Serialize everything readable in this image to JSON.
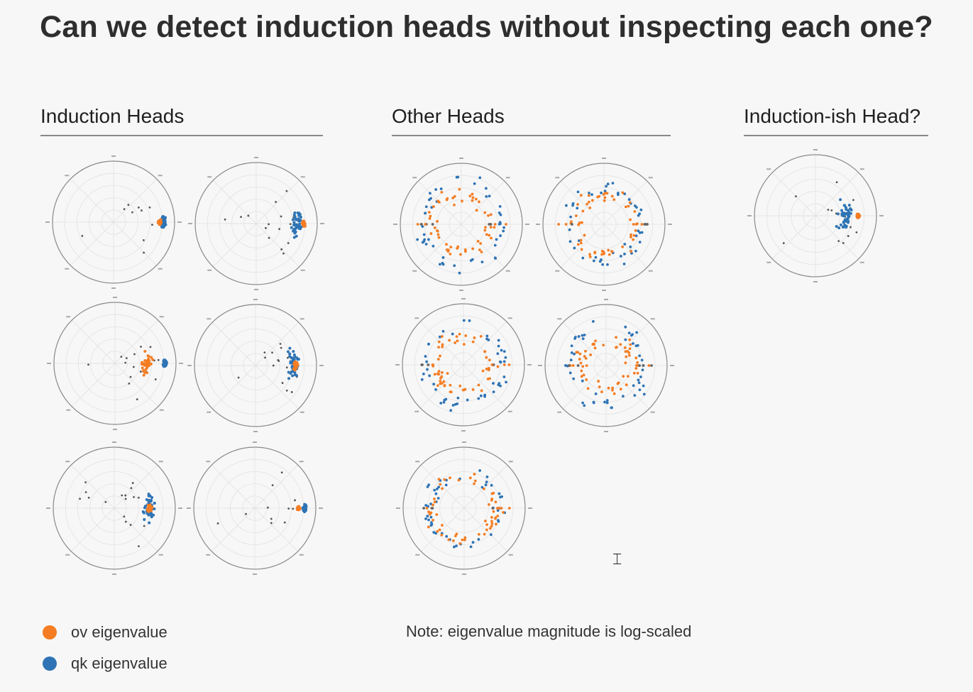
{
  "title": "Can we detect induction heads without inspecting each one?",
  "groups": {
    "induction": "Induction Heads",
    "other": "Other Heads",
    "ish": "Induction-ish Head?"
  },
  "legend": {
    "ov": {
      "label": "ov eigenvalue",
      "color": "#f47d23"
    },
    "qk": {
      "label": "qk eigenvalue",
      "color": "#2e74b5"
    }
  },
  "note": "Note: eigenvalue magnitude is log-scaled",
  "chart_data": [
    {
      "type": "scatter",
      "group": "Induction Heads",
      "polar": true,
      "pattern": "induction",
      "series": [
        {
          "key": "qk",
          "angle_deg": 0,
          "radius": 0.82,
          "spread": 0.06
        },
        {
          "key": "ov",
          "angle_deg": 0,
          "radius": 0.76,
          "spread": 0.03
        }
      ]
    },
    {
      "type": "scatter",
      "group": "Induction Heads",
      "polar": true,
      "pattern": "induction",
      "series": [
        {
          "key": "qk",
          "angle_deg": 0,
          "radius": 0.68,
          "spread": 0.22
        },
        {
          "key": "ov",
          "angle_deg": 0,
          "radius": 0.78,
          "spread": 0.03
        }
      ]
    },
    {
      "type": "scatter",
      "group": "Induction Heads",
      "polar": true,
      "pattern": "induction",
      "series": [
        {
          "key": "qk",
          "angle_deg": 0,
          "radius": 0.82,
          "spread": 0.05
        },
        {
          "key": "ov",
          "angle_deg": 0,
          "radius": 0.52,
          "spread": 0.22
        }
      ]
    },
    {
      "type": "scatter",
      "group": "Induction Heads",
      "polar": true,
      "pattern": "induction",
      "series": [
        {
          "key": "qk",
          "angle_deg": 0,
          "radius": 0.62,
          "spread": 0.25
        },
        {
          "key": "ov",
          "angle_deg": 0,
          "radius": 0.66,
          "spread": 0.06
        }
      ]
    },
    {
      "type": "scatter",
      "group": "Induction Heads",
      "polar": true,
      "pattern": "induction",
      "series": [
        {
          "key": "qk",
          "angle_deg": 0,
          "radius": 0.58,
          "spread": 0.26
        },
        {
          "key": "ov",
          "angle_deg": 0,
          "radius": 0.58,
          "spread": 0.08
        }
      ]
    },
    {
      "type": "scatter",
      "group": "Induction Heads",
      "polar": true,
      "pattern": "induction",
      "series": [
        {
          "key": "qk",
          "angle_deg": 0,
          "radius": 0.82,
          "spread": 0.05
        },
        {
          "key": "ov",
          "angle_deg": 0,
          "radius": 0.72,
          "spread": 0.03
        }
      ]
    },
    {
      "type": "scatter",
      "group": "Other Heads",
      "polar": true,
      "pattern": "ring",
      "series": [
        {
          "key": "qk",
          "radius": 0.68
        },
        {
          "key": "ov",
          "radius": 0.46
        }
      ]
    },
    {
      "type": "scatter",
      "group": "Other Heads",
      "polar": true,
      "pattern": "ring",
      "series": [
        {
          "key": "qk",
          "radius": 0.6
        },
        {
          "key": "ov",
          "radius": 0.48
        }
      ]
    },
    {
      "type": "scatter",
      "group": "Other Heads",
      "polar": true,
      "pattern": "ring",
      "series": [
        {
          "key": "qk",
          "radius": 0.66
        },
        {
          "key": "ov",
          "radius": 0.44
        }
      ]
    },
    {
      "type": "scatter",
      "group": "Other Heads",
      "polar": true,
      "pattern": "ring",
      "series": [
        {
          "key": "qk",
          "radius": 0.62
        },
        {
          "key": "ov",
          "radius": 0.42
        }
      ]
    },
    {
      "type": "scatter",
      "group": "Other Heads",
      "polar": true,
      "pattern": "ring",
      "series": [
        {
          "key": "qk",
          "radius": 0.58
        },
        {
          "key": "ov",
          "radius": 0.52
        }
      ]
    },
    {
      "type": "scatter",
      "group": "Induction-ish Head?",
      "polar": true,
      "pattern": "induction",
      "series": [
        {
          "key": "qk",
          "angle_deg": 0,
          "radius": 0.5,
          "spread": 0.32
        },
        {
          "key": "ov",
          "angle_deg": 0,
          "radius": 0.7,
          "spread": 0.03
        }
      ]
    }
  ]
}
